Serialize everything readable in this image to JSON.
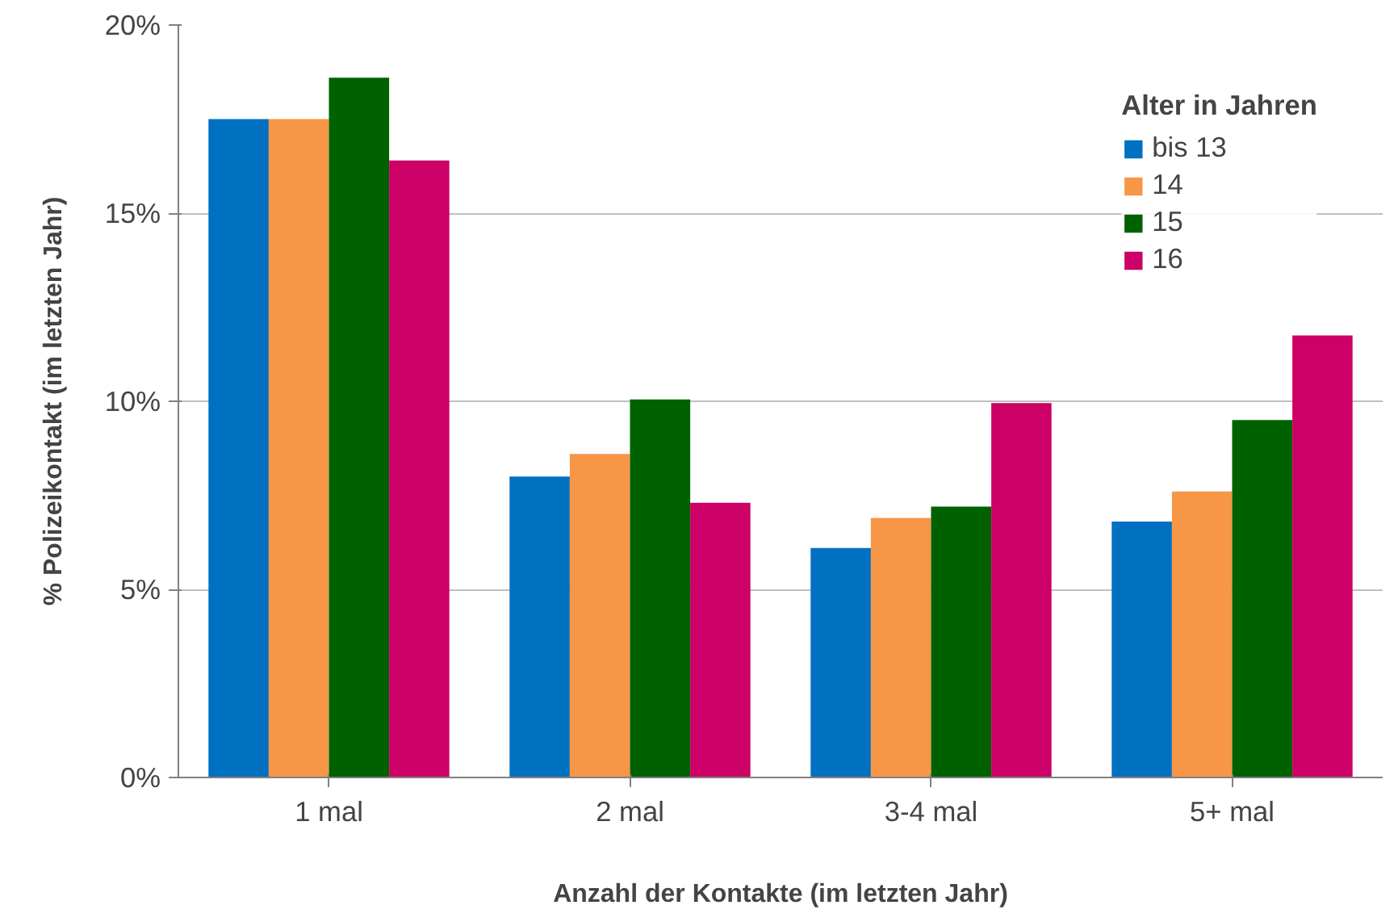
{
  "chart_data": {
    "type": "bar",
    "xlabel": "Anzahl der Kontakte (im letzten Jahr)",
    "ylabel": "% Polizeikontakt (im letzten Jahr)",
    "legend_title": "Alter in Jahren",
    "categories": [
      "1 mal",
      "2 mal",
      "3-4 mal",
      "5+ mal"
    ],
    "series": [
      {
        "name": "bis 13",
        "color": "#0070c0",
        "values": [
          17.5,
          8.0,
          6.1,
          6.8
        ]
      },
      {
        "name": "14",
        "color": "#f79646",
        "values": [
          17.5,
          8.6,
          6.9,
          7.6
        ]
      },
      {
        "name": "15",
        "color": "#006100",
        "values": [
          18.6,
          10.05,
          7.2,
          9.5
        ]
      },
      {
        "name": "16",
        "color": "#cc0066",
        "values": [
          16.4,
          7.3,
          9.95,
          11.75
        ]
      }
    ],
    "ylim": [
      0,
      20
    ],
    "yticks": [
      {
        "value": 0,
        "label": "0%"
      },
      {
        "value": 5,
        "label": "5%"
      },
      {
        "value": 10,
        "label": "10%"
      },
      {
        "value": 15,
        "label": "15%"
      },
      {
        "value": 20,
        "label": "20%"
      }
    ],
    "grid": "y",
    "legend": "top right"
  }
}
